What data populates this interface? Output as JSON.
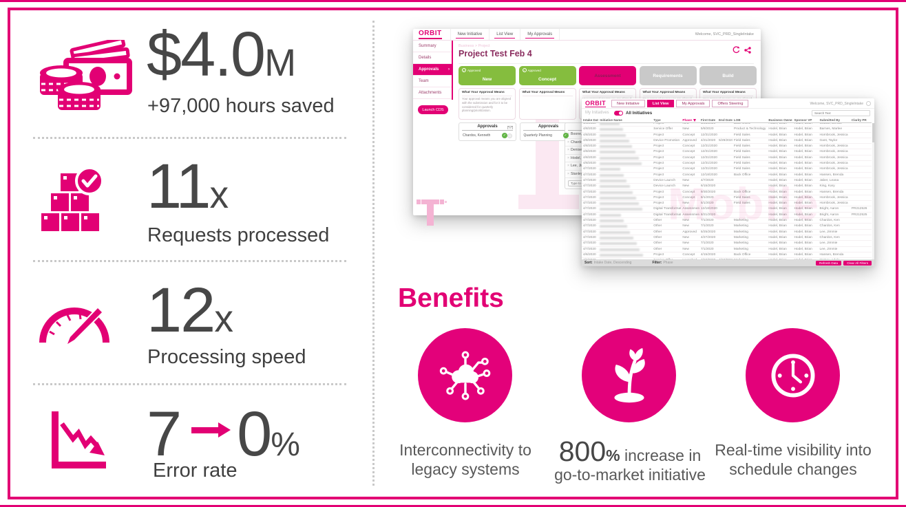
{
  "colors": {
    "accent": "#E20074",
    "stage_green": "#85BD3E",
    "stage_gray": "#C9C9C9"
  },
  "metrics": [
    {
      "value": "$4.0",
      "unit": "M",
      "label": "+97,000 hours saved"
    },
    {
      "value": "11",
      "unit": "x",
      "label": "Requests processed"
    },
    {
      "value": "12",
      "unit": "x",
      "label": "Processing speed"
    },
    {
      "value_from": "7",
      "value_to": "0",
      "unit": "%",
      "label": "Error rate"
    }
  ],
  "benefits": {
    "title": "Benefits",
    "items": [
      {
        "line1": "Interconnectivity to",
        "line2": "legacy systems"
      },
      {
        "big": "800",
        "pct": "%",
        "line1_rest": " increase in",
        "line2": "go-to-market initiative"
      },
      {
        "line1": "Real-time visibility into",
        "line2": "schedule changes"
      }
    ]
  },
  "detail_app": {
    "logo": "ORBIT",
    "nav": [
      "New Initiative",
      "List View",
      "My Approvals"
    ],
    "welcome": "Welcome, SVC_PRD_SingleIntake",
    "sidebar": [
      "Summary",
      "Details",
      "Approvals",
      "Team",
      "Attachments"
    ],
    "sidebar_active": "Approvals",
    "launch_button": "Launch CDS",
    "breadcrumb": "Business > Project",
    "title": "Project Test Feb 4",
    "stages": [
      {
        "name": "New",
        "badge": "Approved"
      },
      {
        "name": "Concept",
        "badge": "Approved"
      },
      {
        "name": "Assessment"
      },
      {
        "name": "Requirements"
      },
      {
        "name": "Build"
      }
    ],
    "card_header": "What Your Approval Means",
    "card_bodies": [
      "Your approval means you are aligned with the submission and for it to be considered for quarterly planning/prioritization.",
      "",
      "Your approval means you are aligned with the Assessment (including concept, CX high level design & IT teams to build requirements.",
      "Your approval means you are aligned with Requirements, the funding request, and aligning.",
      "Your approval means you are aligned with launching this initiative."
    ],
    "approvals_title": "Approvals",
    "approvers": [
      "Chardos, Kenneth",
      "Quarterly Planning"
    ],
    "pending_list": [
      "Boone, Ir",
      "Chardos,",
      "Denise Le",
      "Hodel, Br",
      "Lee, Jimm",
      "Stanley, J"
    ],
    "add_placeholder": "Type to Add"
  },
  "list_app": {
    "logo": "ORBIT",
    "nav": [
      "New Initiative",
      "List View",
      "My Approvals",
      "Offers Steering"
    ],
    "active_nav": "List View",
    "welcome": "Welcome, SVC_PRD_SingleIntake",
    "toggle_off_label": "My Initiatives",
    "toggle_on_label": "All Initiatives",
    "search_placeholder": "Search Text",
    "columns": [
      "Intake Date",
      "Initiative Name",
      "Type",
      "Phase",
      "First Date",
      "End Date",
      "LOB",
      "Business Owner",
      "Sponsor VP",
      "Submitted By",
      "Clarity PR #"
    ],
    "rows": [
      {
        "intake": "4/8/2020",
        "type": "Project",
        "phase": "New",
        "first": "5/21/2020",
        "end": "",
        "lob": "Back Office",
        "owner": "Hodel, Brian",
        "sponsor": "Hodel, Brian",
        "submitted": "Cowan, Denise",
        "clarity": ""
      },
      {
        "intake": "4/8/2020",
        "type": "Service Offer",
        "phase": "New",
        "first": "5/8/2020",
        "end": "",
        "lob": "Product & Technology",
        "owner": "Hodel, Brian",
        "sponsor": "Hodel, Brian",
        "submitted": "Barnes, Marlee",
        "clarity": ""
      },
      {
        "intake": "4/8/2020",
        "type": "Project",
        "phase": "Concept",
        "first": "12/31/2020",
        "end": "",
        "lob": "Field Sales",
        "owner": "Hodel, Brian",
        "sponsor": "Hodel, Brian",
        "submitted": "Hornbrook, Jessica",
        "clarity": ""
      },
      {
        "intake": "4/8/2020",
        "type": "Device Promotion",
        "phase": "Approved",
        "first": "4/21/2020",
        "end": "5/29/2020",
        "lob": "Field Sales",
        "owner": "Hodel, Brian",
        "sponsor": "Hodel, Brian",
        "submitted": "Gant, Taylor",
        "clarity": ""
      },
      {
        "intake": "4/8/2020",
        "type": "Project",
        "phase": "Concept",
        "first": "12/31/2020",
        "end": "",
        "lob": "Field Sales",
        "owner": "Hodel, Brian",
        "sponsor": "Hodel, Brian",
        "submitted": "Hornbrook, Jessica",
        "clarity": ""
      },
      {
        "intake": "4/8/2020",
        "type": "Project",
        "phase": "Concept",
        "first": "12/31/2020",
        "end": "",
        "lob": "Field Sales",
        "owner": "Hodel, Brian",
        "sponsor": "Hodel, Brian",
        "submitted": "Hornbrook, Jessica",
        "clarity": ""
      },
      {
        "intake": "4/8/2020",
        "type": "Project",
        "phase": "Concept",
        "first": "12/31/2020",
        "end": "",
        "lob": "Field Sales",
        "owner": "Hodel, Brian",
        "sponsor": "Hodel, Brian",
        "submitted": "Hornbrook, Jessica",
        "clarity": ""
      },
      {
        "intake": "4/8/2020",
        "type": "Project",
        "phase": "Concept",
        "first": "12/31/2020",
        "end": "",
        "lob": "Field Sales",
        "owner": "Hodel, Brian",
        "sponsor": "Hodel, Brian",
        "submitted": "Hornbrook, Jessica",
        "clarity": ""
      },
      {
        "intake": "4/7/2020",
        "type": "Project",
        "phase": "Concept",
        "first": "12/31/2020",
        "end": "",
        "lob": "Field Sales",
        "owner": "Hodel, Brian",
        "sponsor": "Hodel, Brian",
        "submitted": "Hornbrook, Jessica",
        "clarity": ""
      },
      {
        "intake": "4/7/2020",
        "type": "Project",
        "phase": "Concept",
        "first": "12/18/2020",
        "end": "",
        "lob": "Back Office",
        "owner": "Hodel, Brian",
        "sponsor": "Hodel, Brian",
        "submitted": "Hansen, Brenda",
        "clarity": ""
      },
      {
        "intake": "4/7/2020",
        "type": "Device Launch",
        "phase": "New",
        "first": "4/7/2020",
        "end": "",
        "lob": "",
        "owner": "Hodel, Brian",
        "sponsor": "Hodel, Brian",
        "submitted": "Jaber, Leana",
        "clarity": ""
      },
      {
        "intake": "4/7/2020",
        "type": "Device Launch",
        "phase": "New",
        "first": "6/15/2020",
        "end": "",
        "lob": "",
        "owner": "Hodel, Brian",
        "sponsor": "Hodel, Brian",
        "submitted": "King, Kary",
        "clarity": ""
      },
      {
        "intake": "4/7/2020",
        "type": "Project",
        "phase": "Concept",
        "first": "9/30/2020",
        "end": "",
        "lob": "Back Office",
        "owner": "Hodel, Brian",
        "sponsor": "Hodel, Brian",
        "submitted": "Hansen, Brenda",
        "clarity": ""
      },
      {
        "intake": "4/7/2020",
        "type": "Project",
        "phase": "Concept",
        "first": "8/1/2020",
        "end": "",
        "lob": "Field Sales",
        "owner": "Hodel, Brian",
        "sponsor": "Hodel, Brian",
        "submitted": "Hornbrook, Jessica",
        "clarity": ""
      },
      {
        "intake": "4/7/2020",
        "type": "Project",
        "phase": "New",
        "first": "5/1/2020",
        "end": "",
        "lob": "Field Sales",
        "owner": "Hodel, Brian",
        "sponsor": "Hodel, Brian",
        "submitted": "Hornbrook, Jessica",
        "clarity": ""
      },
      {
        "intake": "4/7/2020",
        "type": "Digital Transformation",
        "phase": "Assessment",
        "first": "12/18/2020",
        "end": "",
        "lob": "",
        "owner": "Hodel, Brian",
        "sponsor": "Hodel, Brian",
        "submitted": "Bright, Aaron",
        "clarity": "PR212526"
      },
      {
        "intake": "4/7/2020",
        "type": "Digital Transformation",
        "phase": "Assessment",
        "first": "8/21/2020",
        "end": "",
        "lob": "",
        "owner": "Hodel, Brian",
        "sponsor": "Hodel, Brian",
        "submitted": "Bright, Aaron",
        "clarity": "PR212525"
      },
      {
        "intake": "4/7/2020",
        "type": "Other",
        "phase": "New",
        "first": "7/1/2020",
        "end": "",
        "lob": "Marketing",
        "owner": "Hodel, Brian",
        "sponsor": "Hodel, Brian",
        "submitted": "Chardos, Ken",
        "clarity": ""
      },
      {
        "intake": "4/7/2020",
        "type": "Other",
        "phase": "New",
        "first": "7/1/2020",
        "end": "",
        "lob": "Marketing",
        "owner": "Hodel, Brian",
        "sponsor": "Hodel, Brian",
        "submitted": "Chardos, Ken",
        "clarity": ""
      },
      {
        "intake": "4/7/2020",
        "type": "Other",
        "phase": "Approved",
        "first": "5/25/2020",
        "end": "",
        "lob": "Marketing",
        "owner": "Hodel, Brian",
        "sponsor": "Hodel, Brian",
        "submitted": "Lee, Jimmie",
        "clarity": ""
      },
      {
        "intake": "4/7/2020",
        "type": "Other",
        "phase": "New",
        "first": "4/27/2020",
        "end": "",
        "lob": "Marketing",
        "owner": "Hodel, Brian",
        "sponsor": "Hodel, Brian",
        "submitted": "Chardos, Ken",
        "clarity": ""
      },
      {
        "intake": "4/7/2020",
        "type": "Other",
        "phase": "New",
        "first": "7/1/2020",
        "end": "",
        "lob": "Marketing",
        "owner": "Hodel, Brian",
        "sponsor": "Hodel, Brian",
        "submitted": "Lee, Jimmie",
        "clarity": ""
      },
      {
        "intake": "4/7/2020",
        "type": "Other",
        "phase": "New",
        "first": "7/1/2020",
        "end": "",
        "lob": "Marketing",
        "owner": "Hodel, Brian",
        "sponsor": "Hodel, Brian",
        "submitted": "Lee, Jimmie",
        "clarity": ""
      },
      {
        "intake": "4/6/2020",
        "locked": true,
        "type": "Project",
        "phase": "Concept",
        "first": "4/15/2020",
        "end": "",
        "lob": "Back Office",
        "owner": "Hodel, Brian",
        "sponsor": "Hodel, Brian",
        "submitted": "Hansen, Brenda",
        "clarity": ""
      },
      {
        "intake": "4/6/2020",
        "type": "Service Offer",
        "phase": "Launched",
        "first": "4/10/2020",
        "end": "4/10/2020",
        "lob": "Marketing",
        "owner": "Hodel, Brian",
        "sponsor": "Hodel, Brian",
        "submitted": "McCoy, Adele",
        "clarity": ""
      }
    ],
    "footer": {
      "sort_label": "Sort:",
      "sort_value": "Intake Date, Descending",
      "filter_label": "Filter:",
      "filter_value": "Phase",
      "refresh_button": "Refresh Data",
      "clear_button": "Clear All Filters"
    },
    "watermark": "Mobile"
  }
}
